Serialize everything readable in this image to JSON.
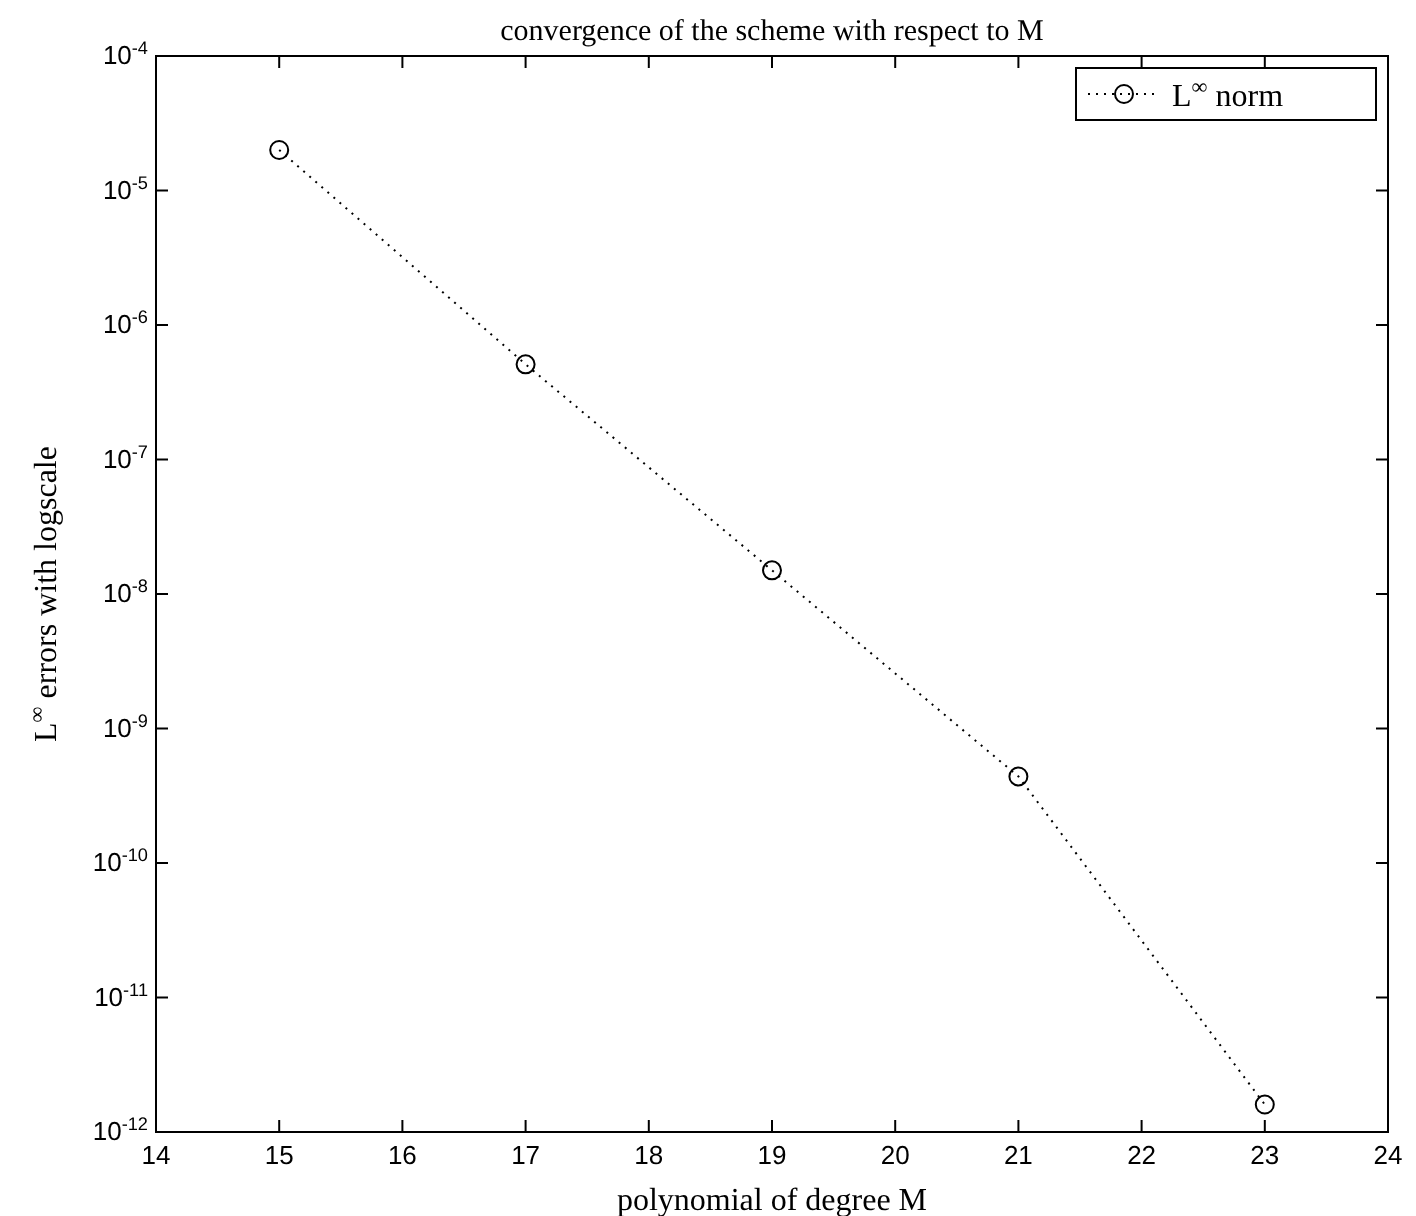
{
  "chart_data": {
    "type": "line",
    "title": "convergence of the scheme with respect to M",
    "xlabel": "polynomial of degree M",
    "ylabel": "L$^{∞}$ errors with logscale",
    "x": [
      15,
      17,
      19,
      21,
      23
    ],
    "series": [
      {
        "name": "L$^{∞}$ norm",
        "color": "#000000",
        "values": [
          2e-05,
          5.1e-07,
          1.5e-08,
          4.4e-10,
          1.6e-12
        ]
      }
    ],
    "xlim": [
      14,
      24
    ],
    "xticks": [
      14,
      15,
      16,
      17,
      18,
      19,
      20,
      21,
      22,
      23,
      24
    ],
    "ylim": [
      1e-12,
      0.0001
    ],
    "yticks": [
      {
        "value": 1e-12,
        "label": "10$^{-12}$"
      },
      {
        "value": 1e-11,
        "label": "10$^{-11}$"
      },
      {
        "value": 1e-10,
        "label": "10$^{-10}$"
      },
      {
        "value": 1e-09,
        "label": "10$^{-9}$"
      },
      {
        "value": 1e-08,
        "label": "10$^{-8}$"
      },
      {
        "value": 1e-07,
        "label": "10$^{-7}$"
      },
      {
        "value": 1e-06,
        "label": "10$^{-6}$"
      },
      {
        "value": 1e-05,
        "label": "10$^{-5}$"
      },
      {
        "value": 0.0001,
        "label": "10$^{-4}$"
      }
    ],
    "log": "y",
    "grid": false,
    "legend": "top right",
    "marker": "circle",
    "line_style": "dotted"
  }
}
